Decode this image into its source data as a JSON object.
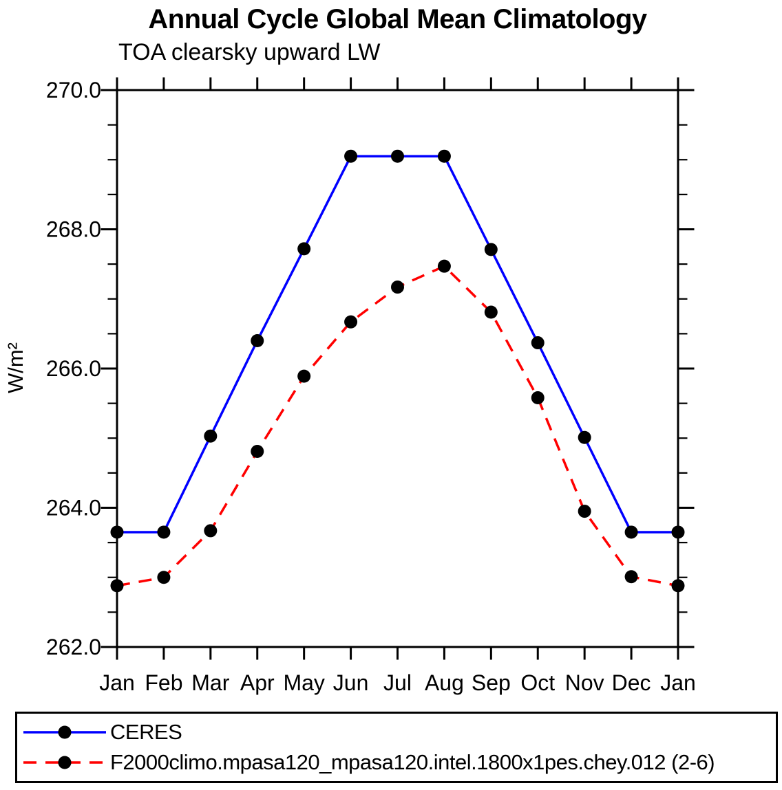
{
  "chart": {
    "background": "#ffffff",
    "axis_color": "#000000",
    "text_color": "#000000"
  },
  "chart_data": {
    "type": "line",
    "title": "Annual Cycle Global Mean Climatology",
    "subtitle": "TOA clearsky upward LW",
    "xlabel": "",
    "ylabel": "W/m²",
    "categories": [
      "Jan",
      "Feb",
      "Mar",
      "Apr",
      "May",
      "Jun",
      "Jul",
      "Aug",
      "Sep",
      "Oct",
      "Nov",
      "Dec",
      "Jan"
    ],
    "ylim": [
      262.0,
      270.0
    ],
    "ytick_major": [
      262.0,
      264.0,
      266.0,
      268.0,
      270.0
    ],
    "ytick_major_labels": [
      "262.0",
      "264.0",
      "266.0",
      "268.0",
      "270.0"
    ],
    "ytick_minor_step": 0.5,
    "grid": false,
    "legend_position": "bottom",
    "series": [
      {
        "name": "CERES",
        "color": "#0000ff",
        "style": "solid",
        "dash": "",
        "marker": "circle",
        "marker_color": "#000000",
        "values": [
          263.65,
          263.65,
          265.03,
          266.4,
          267.72,
          269.05,
          269.05,
          269.05,
          267.71,
          266.37,
          265.01,
          263.65,
          263.65
        ]
      },
      {
        "name": "F2000climo.mpasa120_mpasa120.intel.1800x1pes.chey.012 (2-6)",
        "color": "#ff0000",
        "style": "dashed",
        "dash": "19 13",
        "marker": "circle",
        "marker_color": "#000000",
        "values": [
          262.88,
          263.0,
          263.67,
          264.81,
          265.89,
          266.67,
          267.17,
          267.47,
          266.81,
          265.58,
          263.95,
          263.01,
          262.88
        ]
      }
    ]
  }
}
